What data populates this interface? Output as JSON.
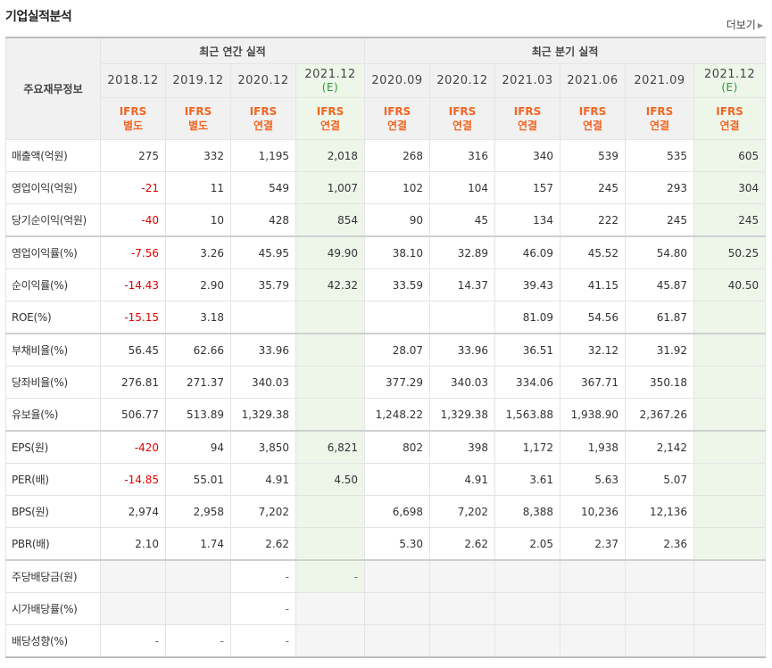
{
  "header": {
    "title": "기업실적분석",
    "more_label": "더보기"
  },
  "table": {
    "corner_label": "주요재무정보",
    "annual_group": "최근 연간 실적",
    "quarter_group": "최근 분기 실적",
    "periods": [
      {
        "date": "2018.12",
        "sub": "",
        "basis": [
          "IFRS",
          "별도"
        ],
        "estimate": false
      },
      {
        "date": "2019.12",
        "sub": "",
        "basis": [
          "IFRS",
          "별도"
        ],
        "estimate": false
      },
      {
        "date": "2020.12",
        "sub": "",
        "basis": [
          "IFRS",
          "연결"
        ],
        "estimate": false
      },
      {
        "date": "2021.12",
        "sub": "(E)",
        "basis": [
          "IFRS",
          "연결"
        ],
        "estimate": true
      },
      {
        "date": "2020.09",
        "sub": "",
        "basis": [
          "IFRS",
          "연결"
        ],
        "estimate": false
      },
      {
        "date": "2020.12",
        "sub": "",
        "basis": [
          "IFRS",
          "연결"
        ],
        "estimate": false
      },
      {
        "date": "2021.03",
        "sub": "",
        "basis": [
          "IFRS",
          "연결"
        ],
        "estimate": false
      },
      {
        "date": "2021.06",
        "sub": "",
        "basis": [
          "IFRS",
          "연결"
        ],
        "estimate": false
      },
      {
        "date": "2021.09",
        "sub": "",
        "basis": [
          "IFRS",
          "연결"
        ],
        "estimate": false
      },
      {
        "date": "2021.12",
        "sub": "(E)",
        "basis": [
          "IFRS",
          "연결"
        ],
        "estimate": true
      }
    ],
    "rows": [
      {
        "label": "매출액(억원)",
        "values": [
          "275",
          "332",
          "1,195",
          "2,018",
          "268",
          "316",
          "340",
          "539",
          "535",
          "605"
        ]
      },
      {
        "label": "영업이익(억원)",
        "values": [
          "-21",
          "11",
          "549",
          "1,007",
          "102",
          "104",
          "157",
          "245",
          "293",
          "304"
        ]
      },
      {
        "label": "당기순이익(억원)",
        "values": [
          "-40",
          "10",
          "428",
          "854",
          "90",
          "45",
          "134",
          "222",
          "245",
          "245"
        ]
      },
      {
        "label": "영업이익률(%)",
        "values": [
          "-7.56",
          "3.26",
          "45.95",
          "49.90",
          "38.10",
          "32.89",
          "46.09",
          "45.52",
          "54.80",
          "50.25"
        ]
      },
      {
        "label": "순이익률(%)",
        "values": [
          "-14.43",
          "2.90",
          "35.79",
          "42.32",
          "33.59",
          "14.37",
          "39.43",
          "41.15",
          "45.87",
          "40.50"
        ]
      },
      {
        "label": "ROE(%)",
        "values": [
          "-15.15",
          "3.18",
          "",
          "",
          "",
          "",
          "81.09",
          "54.56",
          "61.87",
          ""
        ]
      },
      {
        "label": "부채비율(%)",
        "values": [
          "56.45",
          "62.66",
          "33.96",
          "",
          "28.07",
          "33.96",
          "36.51",
          "32.12",
          "31.92",
          ""
        ]
      },
      {
        "label": "당좌비율(%)",
        "values": [
          "276.81",
          "271.37",
          "340.03",
          "",
          "377.29",
          "340.03",
          "334.06",
          "367.71",
          "350.18",
          ""
        ]
      },
      {
        "label": "유보율(%)",
        "values": [
          "506.77",
          "513.89",
          "1,329.38",
          "",
          "1,248.22",
          "1,329.38",
          "1,563.88",
          "1,938.90",
          "2,367.26",
          ""
        ]
      },
      {
        "label": "EPS(원)",
        "values": [
          "-420",
          "94",
          "3,850",
          "6,821",
          "802",
          "398",
          "1,172",
          "1,938",
          "2,142",
          ""
        ]
      },
      {
        "label": "PER(배)",
        "values": [
          "-14.85",
          "55.01",
          "4.91",
          "4.50",
          "",
          "4.91",
          "3.61",
          "5.63",
          "5.07",
          ""
        ]
      },
      {
        "label": "BPS(원)",
        "values": [
          "2,974",
          "2,958",
          "7,202",
          "",
          "6,698",
          "7,202",
          "8,388",
          "10,236",
          "12,136",
          ""
        ]
      },
      {
        "label": "PBR(배)",
        "values": [
          "2.10",
          "1.74",
          "2.62",
          "",
          "5.30",
          "2.62",
          "2.05",
          "2.37",
          "2.36",
          ""
        ]
      },
      {
        "label": "주당배당금(원)",
        "values": [
          "",
          "",
          "-",
          "-",
          "",
          "",
          "",
          "",
          "",
          ""
        ]
      },
      {
        "label": "시가배당률(%)",
        "values": [
          "",
          "",
          "-",
          "",
          "",
          "",
          "",
          "",
          "",
          ""
        ]
      },
      {
        "label": "배당성향(%)",
        "values": [
          "-",
          "-",
          "-",
          "",
          "",
          "",
          "",
          "",
          "",
          ""
        ]
      }
    ]
  }
}
